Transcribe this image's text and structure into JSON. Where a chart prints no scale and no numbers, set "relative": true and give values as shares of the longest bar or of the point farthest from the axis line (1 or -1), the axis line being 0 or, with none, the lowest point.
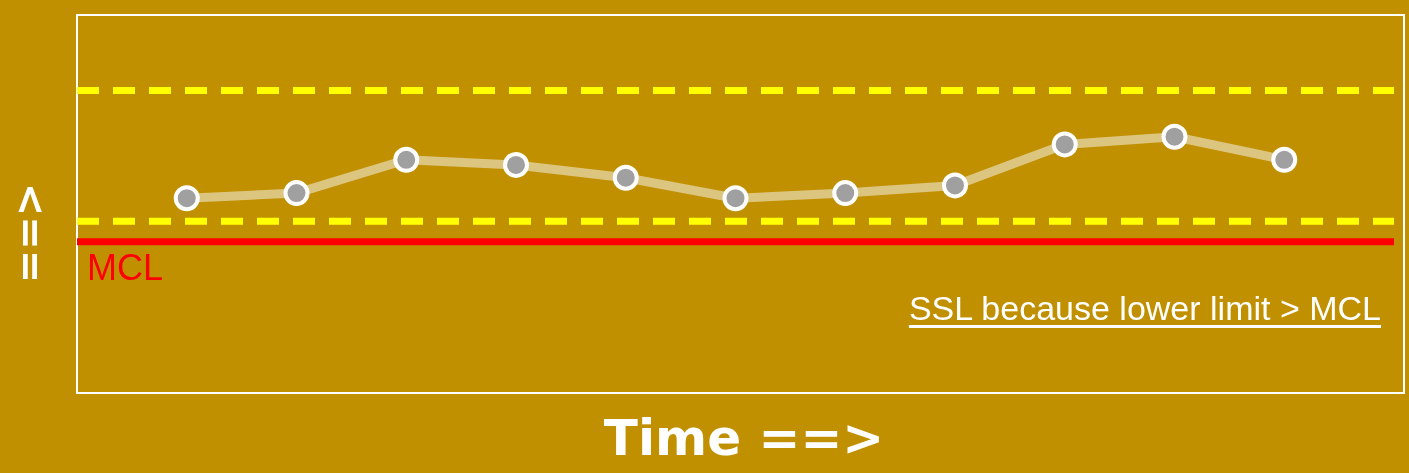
{
  "chart_data": {
    "type": "line",
    "relative": true,
    "xlabel": "Time ==>",
    "ylabel": "==>",
    "categories": [
      null,
      null,
      null,
      null,
      null,
      null,
      null,
      null,
      null,
      null,
      null
    ],
    "series": [
      {
        "color": "#dcc57e",
        "values": [
          0.76,
          0.78,
          0.91,
          0.89,
          0.84,
          0.76,
          0.78,
          0.81,
          0.97,
          1,
          0.91
        ]
      }
    ],
    "marker": "circle",
    "line_style": "solid",
    "legend": false,
    "ref_lines": [
      {
        "axis": "y",
        "value": 1.18,
        "label": null,
        "color": "#ffff00",
        "line_style": "dashed"
      },
      {
        "axis": "y",
        "value": 0.67,
        "label": null,
        "color": "#ffff00",
        "line_style": "dashed"
      },
      {
        "axis": "y",
        "value": 0.59,
        "label": "MCL",
        "color": "#ff0000",
        "line_style": "solid"
      }
    ],
    "annotations": [
      "SSL because lower limit > MCL"
    ]
  }
}
